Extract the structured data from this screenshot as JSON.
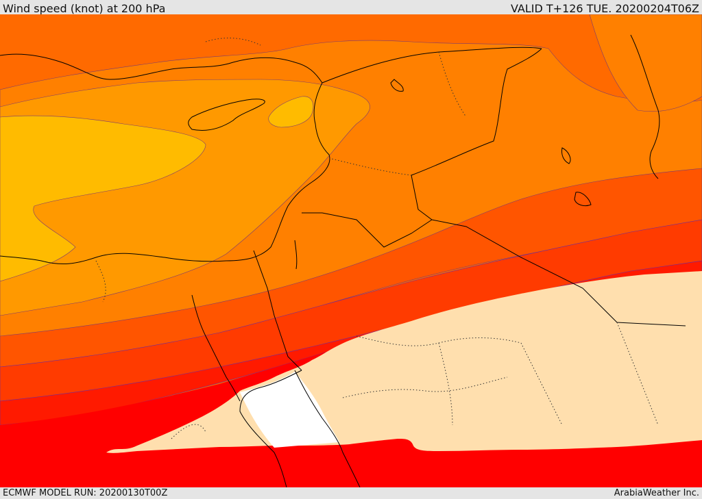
{
  "header": {
    "title": "Wind speed (knot) at 200 hPa",
    "valid": "VALID T+126 TUE. 20200204T06Z"
  },
  "footer": {
    "model_run": "ECMWF MODEL RUN: 20200130T00Z",
    "credit": "ArabiaWeather Inc."
  },
  "colors": {
    "band_darkest": "#ff6600",
    "band_dark": "#ff8000",
    "band_mid": "#ff9900",
    "band_yellow": "#ffbb00",
    "band_orange_red": "#ff5500",
    "band_red_orange": "#ff3b00",
    "band_strong_red": "#ff2200",
    "band_red": "#ff0000",
    "band_pale": "#ffdfae",
    "band_white": "#ffffff",
    "coastline": "#000000"
  }
}
